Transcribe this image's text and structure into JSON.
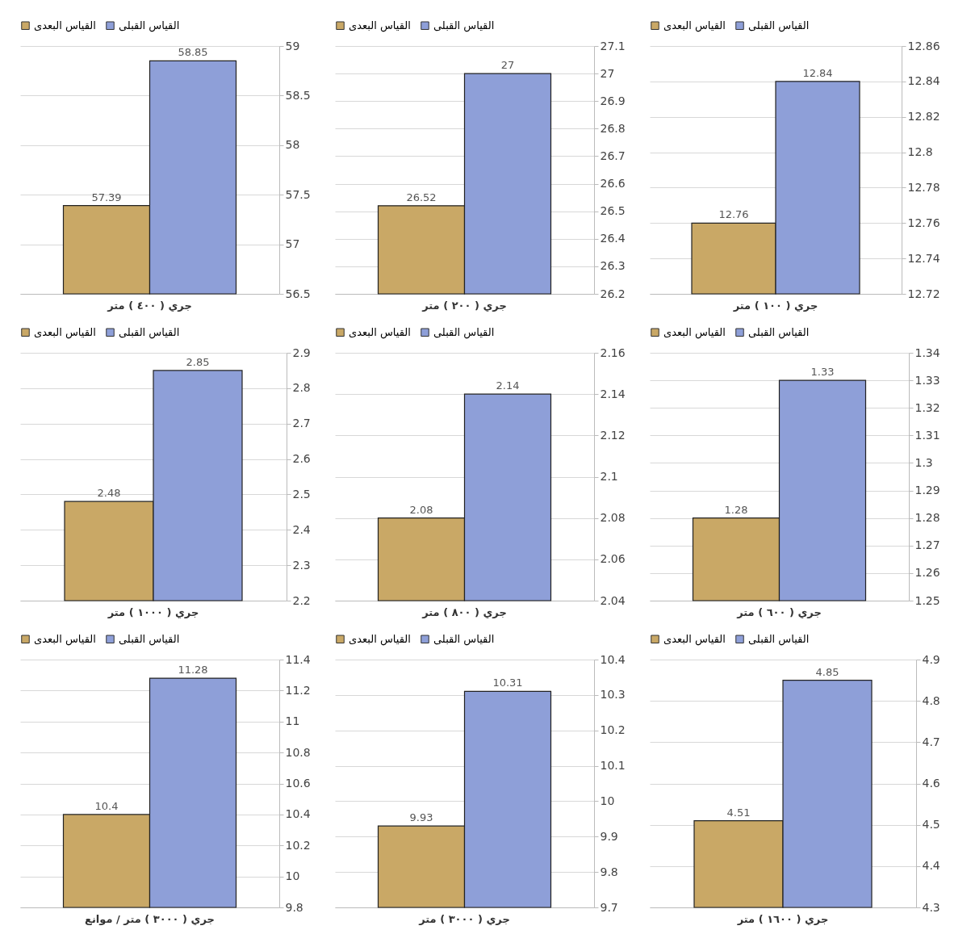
{
  "chart_data": [
    {
      "type": "bar",
      "categories": [
        "جري ( ٤٠٠ ) متر"
      ],
      "series": [
        {
          "name": "القياس البعدى",
          "color": "#c9a866",
          "values": [
            57.39
          ]
        },
        {
          "name": "القياس القبلى",
          "color": "#8e9fd8",
          "values": [
            58.85
          ]
        }
      ],
      "ylim": [
        56.5,
        59
      ],
      "yticks": [
        56.5,
        57,
        57.5,
        58,
        58.5,
        59
      ],
      "grid": "y",
      "legend": "top",
      "data_labels": true
    },
    {
      "type": "bar",
      "categories": [
        "جري ( ٢٠٠ ) متر"
      ],
      "series": [
        {
          "name": "القياس البعدى",
          "color": "#c9a866",
          "values": [
            26.52
          ]
        },
        {
          "name": "القياس القبلى",
          "color": "#8e9fd8",
          "values": [
            27
          ]
        }
      ],
      "ylim": [
        26.2,
        27.1
      ],
      "yticks": [
        26.2,
        26.3,
        26.4,
        26.5,
        26.6,
        26.7,
        26.8,
        26.9,
        27,
        27.1
      ],
      "grid": "y",
      "legend": "top",
      "data_labels": true
    },
    {
      "type": "bar",
      "categories": [
        "جري ( ١٠٠ ) متر"
      ],
      "series": [
        {
          "name": "القياس البعدى",
          "color": "#c9a866",
          "values": [
            12.76
          ]
        },
        {
          "name": "القياس القبلى",
          "color": "#8e9fd8",
          "values": [
            12.84
          ]
        }
      ],
      "ylim": [
        12.72,
        12.86
      ],
      "yticks": [
        12.72,
        12.74,
        12.76,
        12.78,
        12.8,
        12.82,
        12.84,
        12.86
      ],
      "grid": "y",
      "legend": "top",
      "data_labels": true
    },
    {
      "type": "bar",
      "categories": [
        "جري ( ١٠٠٠ ) متر"
      ],
      "series": [
        {
          "name": "القياس البعدى",
          "color": "#c9a866",
          "values": [
            2.48
          ]
        },
        {
          "name": "القياس القبلى",
          "color": "#8e9fd8",
          "values": [
            2.85
          ]
        }
      ],
      "ylim": [
        2.2,
        2.9
      ],
      "yticks": [
        2.2,
        2.3,
        2.4,
        2.5,
        2.6,
        2.7,
        2.8,
        2.9
      ],
      "grid": "y",
      "legend": "top",
      "data_labels": true
    },
    {
      "type": "bar",
      "categories": [
        "جري ( ٨٠٠ ) متر"
      ],
      "series": [
        {
          "name": "القياس البعدى",
          "color": "#c9a866",
          "values": [
            2.08
          ]
        },
        {
          "name": "القياس القبلى",
          "color": "#8e9fd8",
          "values": [
            2.14
          ]
        }
      ],
      "ylim": [
        2.04,
        2.16
      ],
      "yticks": [
        2.04,
        2.06,
        2.08,
        2.1,
        2.12,
        2.14,
        2.16
      ],
      "grid": "y",
      "legend": "top",
      "data_labels": true
    },
    {
      "type": "bar",
      "categories": [
        "جري ( ٦٠٠ ) متر"
      ],
      "series": [
        {
          "name": "القياس البعدى",
          "color": "#c9a866",
          "values": [
            1.28
          ]
        },
        {
          "name": "القياس القبلى",
          "color": "#8e9fd8",
          "values": [
            1.33
          ]
        }
      ],
      "ylim": [
        1.25,
        1.34
      ],
      "yticks": [
        1.25,
        1.26,
        1.27,
        1.28,
        1.29,
        1.3,
        1.31,
        1.32,
        1.33,
        1.34
      ],
      "grid": "y",
      "legend": "top",
      "data_labels": true
    },
    {
      "type": "bar",
      "categories": [
        "جري ( ٣٠٠٠ ) متر / موانع"
      ],
      "series": [
        {
          "name": "القياس البعدى",
          "color": "#c9a866",
          "values": [
            10.4
          ]
        },
        {
          "name": "القياس القبلى",
          "color": "#8e9fd8",
          "values": [
            11.28
          ]
        }
      ],
      "ylim": [
        9.8,
        11.4
      ],
      "yticks": [
        9.8,
        10,
        10.2,
        10.4,
        10.6,
        10.8,
        11,
        11.2,
        11.4
      ],
      "grid": "y",
      "legend": "top",
      "data_labels": true
    },
    {
      "type": "bar",
      "categories": [
        "جري ( ٣٠٠٠ ) متر"
      ],
      "series": [
        {
          "name": "القياس البعدى",
          "color": "#c9a866",
          "values": [
            9.93
          ]
        },
        {
          "name": "القياس القبلى",
          "color": "#8e9fd8",
          "values": [
            10.31
          ]
        }
      ],
      "ylim": [
        9.7,
        10.4
      ],
      "yticks": [
        9.7,
        9.8,
        9.9,
        10,
        10.1,
        10.2,
        10.3,
        10.4
      ],
      "grid": "y",
      "legend": "top",
      "data_labels": true
    },
    {
      "type": "bar",
      "categories": [
        "جري ( ١٦٠٠ ) متر"
      ],
      "series": [
        {
          "name": "القياس البعدى",
          "color": "#c9a866",
          "values": [
            4.51
          ]
        },
        {
          "name": "القياس القبلى",
          "color": "#8e9fd8",
          "values": [
            4.85
          ]
        }
      ],
      "ylim": [
        4.3,
        4.9
      ],
      "yticks": [
        4.3,
        4.4,
        4.5,
        4.6,
        4.7,
        4.8,
        4.9
      ],
      "grid": "y",
      "legend": "top",
      "data_labels": true
    }
  ]
}
